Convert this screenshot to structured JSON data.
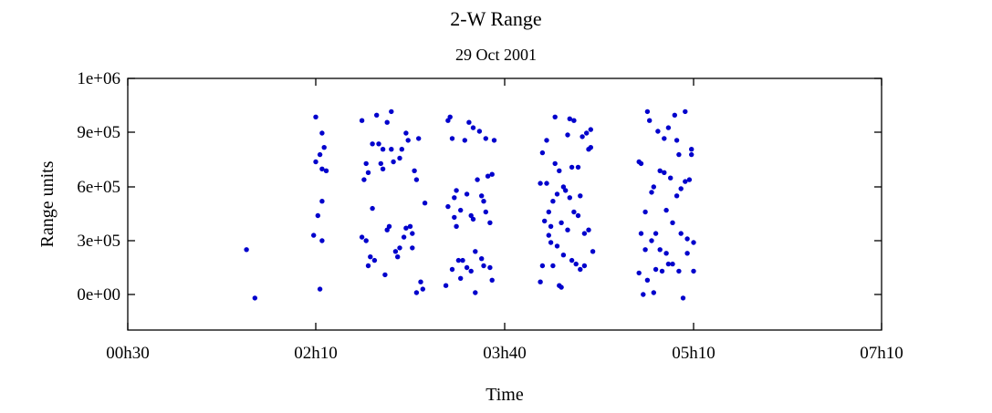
{
  "chart_data": {
    "type": "scatter",
    "title": "2-W Range",
    "subtitle": "29 Oct 2001",
    "xlabel": "Time",
    "ylabel": "Range units",
    "x_ticks": [
      "00h30",
      "02h10",
      "03h40",
      "05h10",
      "07h10"
    ],
    "y_ticks": [
      "0e+00",
      "3e+05",
      "6e+05",
      "9e+05",
      "1e+06"
    ],
    "grid": false,
    "legend": "none",
    "marker_color": "#0000cc",
    "series": [
      {
        "points": [
          [
            "01h37",
            250000
          ],
          [
            "01h41",
            -20000
          ],
          [
            "02h10",
            990000
          ],
          [
            "02h09",
            330000
          ],
          [
            "02h10",
            740000
          ],
          [
            "02h12",
            780000
          ],
          [
            "02h14",
            820000
          ],
          [
            "02h13",
            700000
          ],
          [
            "02h15",
            690000
          ],
          [
            "02h13",
            900000
          ],
          [
            "02h11",
            440000
          ],
          [
            "02h13",
            300000
          ],
          [
            "02h13",
            520000
          ],
          [
            "02h12",
            30000
          ],
          [
            "02h32",
            970000
          ],
          [
            "02h34",
            730000
          ],
          [
            "02h35",
            680000
          ],
          [
            "02h33",
            640000
          ],
          [
            "02h32",
            320000
          ],
          [
            "02h34",
            300000
          ],
          [
            "02h35",
            160000
          ],
          [
            "02h36",
            210000
          ],
          [
            "02h37",
            480000
          ],
          [
            "02h38",
            190000
          ],
          [
            "02h37",
            840000
          ],
          [
            "02h39",
            1000000
          ],
          [
            "02h40",
            840000
          ],
          [
            "02h41",
            730000
          ],
          [
            "02h42",
            700000
          ],
          [
            "02h42",
            810000
          ],
          [
            "02h44",
            960000
          ],
          [
            "02h43",
            110000
          ],
          [
            "02h44",
            360000
          ],
          [
            "02h45",
            380000
          ],
          [
            "02h46",
            810000
          ],
          [
            "02h46",
            1020000
          ],
          [
            "02h47",
            740000
          ],
          [
            "02h48",
            240000
          ],
          [
            "02h49",
            210000
          ],
          [
            "02h50",
            760000
          ],
          [
            "02h50",
            260000
          ],
          [
            "02h51",
            810000
          ],
          [
            "02h52",
            320000
          ],
          [
            "02h53",
            370000
          ],
          [
            "02h53",
            900000
          ],
          [
            "02h54",
            860000
          ],
          [
            "02h55",
            380000
          ],
          [
            "02h56",
            340000
          ],
          [
            "02h56",
            260000
          ],
          [
            "02h57",
            690000
          ],
          [
            "02h58",
            640000
          ],
          [
            "02h58",
            10000
          ],
          [
            "02h59",
            870000
          ],
          [
            "03h00",
            70000
          ],
          [
            "03h01",
            30000
          ],
          [
            "03h02",
            510000
          ],
          [
            "03h12",
            50000
          ],
          [
            "03h13",
            490000
          ],
          [
            "03h13",
            970000
          ],
          [
            "03h14",
            990000
          ],
          [
            "03h15",
            870000
          ],
          [
            "03h15",
            140000
          ],
          [
            "03h16",
            540000
          ],
          [
            "03h16",
            430000
          ],
          [
            "03h17",
            380000
          ],
          [
            "03h17",
            580000
          ],
          [
            "03h18",
            190000
          ],
          [
            "03h19",
            90000
          ],
          [
            "03h19",
            470000
          ],
          [
            "03h20",
            190000
          ],
          [
            "03h21",
            860000
          ],
          [
            "03h22",
            560000
          ],
          [
            "03h22",
            150000
          ],
          [
            "03h23",
            960000
          ],
          [
            "03h24",
            130000
          ],
          [
            "03h24",
            440000
          ],
          [
            "03h25",
            420000
          ],
          [
            "03h25",
            930000
          ],
          [
            "03h26",
            10000
          ],
          [
            "03h26",
            240000
          ],
          [
            "03h27",
            640000
          ],
          [
            "03h28",
            910000
          ],
          [
            "03h29",
            550000
          ],
          [
            "03h29",
            200000
          ],
          [
            "03h30",
            520000
          ],
          [
            "03h30",
            160000
          ],
          [
            "03h31",
            870000
          ],
          [
            "03h31",
            460000
          ],
          [
            "03h32",
            660000
          ],
          [
            "03h33",
            400000
          ],
          [
            "03h33",
            150000
          ],
          [
            "03h34",
            670000
          ],
          [
            "03h34",
            80000
          ],
          [
            "03h35",
            860000
          ],
          [
            "03h57",
            620000
          ],
          [
            "03h57",
            70000
          ],
          [
            "03h58",
            160000
          ],
          [
            "03h58",
            790000
          ],
          [
            "03h59",
            410000
          ],
          [
            "04h00",
            860000
          ],
          [
            "04h00",
            620000
          ],
          [
            "04h01",
            460000
          ],
          [
            "04h01",
            330000
          ],
          [
            "04h02",
            290000
          ],
          [
            "04h02",
            380000
          ],
          [
            "04h03",
            160000
          ],
          [
            "04h03",
            520000
          ],
          [
            "04h04",
            730000
          ],
          [
            "04h04",
            990000
          ],
          [
            "04h05",
            270000
          ],
          [
            "04h05",
            560000
          ],
          [
            "04h06",
            50000
          ],
          [
            "04h06",
            690000
          ],
          [
            "04h07",
            40000
          ],
          [
            "04h07",
            400000
          ],
          [
            "04h08",
            600000
          ],
          [
            "04h08",
            220000
          ],
          [
            "04h09",
            580000
          ],
          [
            "04h10",
            890000
          ],
          [
            "04h10",
            360000
          ],
          [
            "04h11",
            980000
          ],
          [
            "04h11",
            540000
          ],
          [
            "04h12",
            190000
          ],
          [
            "04h12",
            710000
          ],
          [
            "04h13",
            460000
          ],
          [
            "04h13",
            970000
          ],
          [
            "04h14",
            170000
          ],
          [
            "04h15",
            710000
          ],
          [
            "04h15",
            440000
          ],
          [
            "04h16",
            140000
          ],
          [
            "04h16",
            550000
          ],
          [
            "04h17",
            880000
          ],
          [
            "04h18",
            340000
          ],
          [
            "04h18",
            160000
          ],
          [
            "04h19",
            900000
          ],
          [
            "04h20",
            810000
          ],
          [
            "04h20",
            360000
          ],
          [
            "04h21",
            920000
          ],
          [
            "04h21",
            820000
          ],
          [
            "04h22",
            240000
          ],
          [
            "04h44",
            740000
          ],
          [
            "04h44",
            120000
          ],
          [
            "04h45",
            340000
          ],
          [
            "04h46",
            0
          ],
          [
            "04h45",
            730000
          ],
          [
            "04h47",
            460000
          ],
          [
            "04h47",
            250000
          ],
          [
            "04h48",
            1020000
          ],
          [
            "04h48",
            80000
          ],
          [
            "04h49",
            970000
          ],
          [
            "04h50",
            300000
          ],
          [
            "04h50",
            570000
          ],
          [
            "04h51",
            600000
          ],
          [
            "04h51",
            10000
          ],
          [
            "04h52",
            140000
          ],
          [
            "04h52",
            340000
          ],
          [
            "04h53",
            910000
          ],
          [
            "04h54",
            690000
          ],
          [
            "04h54",
            250000
          ],
          [
            "04h55",
            130000
          ],
          [
            "04h56",
            870000
          ],
          [
            "04h56",
            680000
          ],
          [
            "04h57",
            230000
          ],
          [
            "04h57",
            470000
          ],
          [
            "04h58",
            930000
          ],
          [
            "04h58",
            170000
          ],
          [
            "04h59",
            650000
          ],
          [
            "05h00",
            400000
          ],
          [
            "05h00",
            170000
          ],
          [
            "05h01",
            1000000
          ],
          [
            "05h02",
            860000
          ],
          [
            "05h02",
            550000
          ],
          [
            "05h03",
            780000
          ],
          [
            "05h03",
            130000
          ],
          [
            "05h04",
            590000
          ],
          [
            "05h04",
            340000
          ],
          [
            "05h05",
            -20000
          ],
          [
            "05h06",
            630000
          ],
          [
            "05h06",
            1020000
          ],
          [
            "05h07",
            310000
          ],
          [
            "05h07",
            230000
          ],
          [
            "05h08",
            640000
          ],
          [
            "05h09",
            810000
          ],
          [
            "05h09",
            780000
          ],
          [
            "05h10",
            290000
          ],
          [
            "05h10",
            130000
          ]
        ]
      }
    ]
  }
}
